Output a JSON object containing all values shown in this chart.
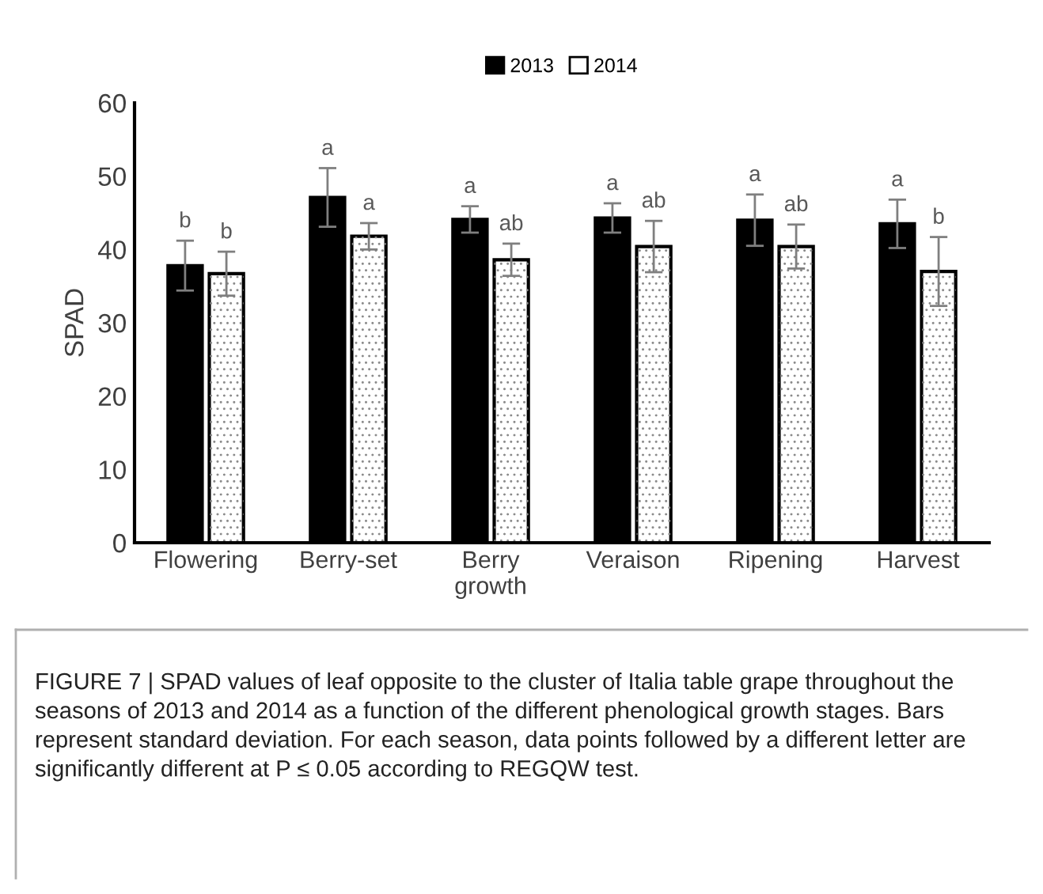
{
  "chart_data": {
    "type": "bar",
    "ylabel": "SPAD",
    "categories": [
      "Flowering",
      "Berry-set",
      "Berry\ngrowth",
      "Veraison",
      "Ripening",
      "Harvest"
    ],
    "series": [
      {
        "name": "2013",
        "color": "#000000",
        "values": [
          37.8,
          47.1,
          44.1,
          44.3,
          44.0,
          43.5
        ],
        "errors": [
          3.4,
          4.0,
          1.8,
          2.0,
          3.5,
          3.3
        ]
      },
      {
        "name": "2014",
        "color": "#ffffff",
        "values": [
          36.7,
          41.8,
          38.6,
          40.4,
          40.4,
          37.0
        ],
        "errors": [
          3.0,
          1.8,
          2.2,
          3.5,
          3.0,
          4.7
        ]
      }
    ],
    "ylim": [
      0,
      60
    ],
    "yticks": [
      0,
      10,
      20,
      30,
      40,
      50,
      60
    ],
    "legend": "top",
    "grid": false,
    "annotations": [
      "b",
      "b",
      "a",
      "a",
      "a",
      "ab",
      "a",
      "ab",
      "a",
      "ab",
      "a",
      "b",
      "FIGURE 7 | SPAD values of leaf opposite to the cluster of Italia table grape throughout the seasons of 2013 and 2014 as a function of the different phenological growth stages. Bars represent standard deviation. For each season, data points followed by a different letter are significantly different at P ≤ 0.05 according to REGQW test."
    ]
  }
}
